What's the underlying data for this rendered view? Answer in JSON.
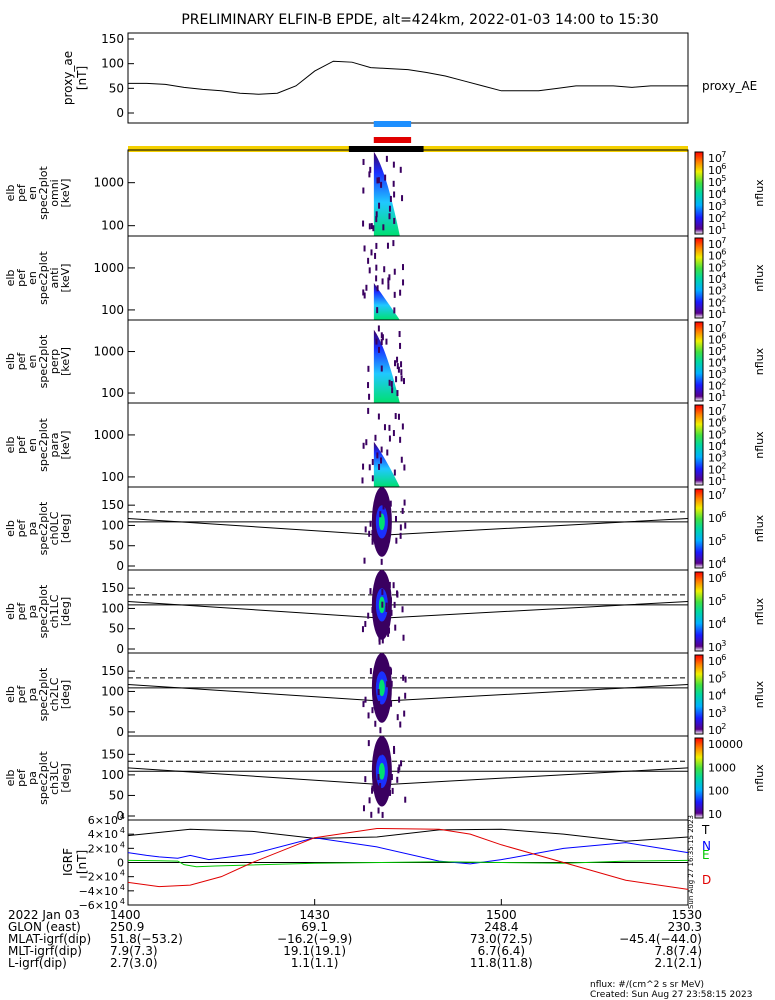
{
  "title": "PRELIMINARY ELFIN-B EPDE, alt=424km, 2022-01-03 14:00 to 15:30",
  "colors": {
    "sci_zone_bar": "#f4d000",
    "sci_zone_active": "#000000",
    "blue_marker": "#1e90ff",
    "red_marker": "#e00000",
    "T_trace": "#000000",
    "N_trace": "#0000ff",
    "E_trace": "#00c800",
    "D_trace": "#e00000"
  },
  "colorbar_label": "nflux",
  "colorbars": [
    {
      "ticks": [
        "10",
        "10",
        "10",
        "10",
        "10",
        "10",
        "10"
      ],
      "exps": [
        "7",
        "6",
        "5",
        "4",
        "3",
        "2",
        "1"
      ]
    },
    {
      "ticks": [
        "10",
        "10",
        "10",
        "10",
        "10",
        "10",
        "10"
      ],
      "exps": [
        "7",
        "6",
        "5",
        "4",
        "3",
        "2",
        "1"
      ]
    },
    {
      "ticks": [
        "10",
        "10",
        "10",
        "10",
        "10",
        "10",
        "10"
      ],
      "exps": [
        "7",
        "6",
        "5",
        "4",
        "3",
        "2",
        "1"
      ]
    },
    {
      "ticks": [
        "10",
        "10",
        "10",
        "10",
        "10",
        "10",
        "10"
      ],
      "exps": [
        "7",
        "6",
        "5",
        "4",
        "3",
        "2",
        "1"
      ]
    },
    {
      "ticks": [
        "10",
        "10",
        "10",
        "10"
      ],
      "exps": [
        "7",
        "6",
        "5",
        "4"
      ]
    },
    {
      "ticks": [
        "10",
        "10",
        "10",
        "10"
      ],
      "exps": [
        "6",
        "5",
        "4",
        "3"
      ]
    },
    {
      "ticks": [
        "10",
        "10",
        "10",
        "10",
        "10"
      ],
      "exps": [
        "6",
        "5",
        "4",
        "3",
        "2"
      ]
    },
    {
      "ticks": [
        "10000",
        "1000",
        "100",
        "10"
      ],
      "exps": [
        "",
        "",
        "",
        ""
      ]
    }
  ],
  "panel_labels": [
    [
      "proxy_ae",
      "[nT]"
    ],
    [
      "elb",
      "pef",
      "en",
      "spec2plot",
      "omni",
      "[keV]"
    ],
    [
      "elb",
      "pef",
      "en",
      "spec2plot",
      "anti",
      "[keV]"
    ],
    [
      "elb",
      "pef",
      "en",
      "spec2plot",
      "perp",
      "[keV]"
    ],
    [
      "elb",
      "pef",
      "en",
      "spec2plot",
      "para",
      "[keV]"
    ],
    [
      "elb",
      "pef",
      "pa",
      "spec2plot",
      "ch0LC",
      "[deg]"
    ],
    [
      "elb",
      "pef",
      "pa",
      "spec2plot",
      "ch1LC",
      "[deg]"
    ],
    [
      "elb",
      "pef",
      "pa",
      "spec2plot",
      "ch2LC",
      "[deg]"
    ],
    [
      "elb",
      "pef",
      "pa",
      "spec2plot",
      "ch3LC",
      "[deg]"
    ],
    [
      "IGRF",
      "[nT]"
    ]
  ],
  "energy_ticks": [
    "1000",
    "100"
  ],
  "pa_ticks": [
    "150",
    "100",
    "50",
    "0"
  ],
  "ae_ticks": [
    "150",
    "100",
    "50",
    "0"
  ],
  "igrf_ticks": [
    {
      "m": "6",
      "e": "4",
      "sign": ""
    },
    {
      "m": "4",
      "e": "4",
      "sign": ""
    },
    {
      "m": "2",
      "e": "4",
      "sign": ""
    },
    {
      "m": "0",
      "e": "",
      "sign": ""
    },
    {
      "m": "2",
      "e": "4",
      "sign": "−"
    },
    {
      "m": "4",
      "e": "4",
      "sign": "−"
    },
    {
      "m": "6",
      "e": "4",
      "sign": "−"
    }
  ],
  "igrf_legend": [
    "T",
    "N",
    "E",
    "D"
  ],
  "ae_series_label": "proxy_AE",
  "side_stamp": "Sun Aug 27 16:35:15 2023",
  "chart_data": [
    {
      "type": "line",
      "name": "proxy_ae",
      "ylabel": "proxy_ae [nT]",
      "ylim": [
        0,
        150
      ],
      "xlim_minutes": [
        0,
        90
      ],
      "series": [
        {
          "name": "proxy_AE",
          "x": [
            0,
            3,
            6,
            9,
            12,
            15,
            18,
            21,
            24,
            27,
            30,
            33,
            36,
            39,
            42,
            45,
            48,
            51,
            54,
            57,
            60,
            63,
            66,
            69,
            72,
            75,
            78,
            81,
            84,
            87,
            90
          ],
          "values": [
            60,
            60,
            58,
            52,
            48,
            45,
            40,
            38,
            40,
            55,
            85,
            105,
            103,
            92,
            90,
            88,
            82,
            75,
            65,
            55,
            45,
            45,
            45,
            50,
            55,
            55,
            55,
            52,
            55,
            55,
            55
          ]
        }
      ]
    },
    {
      "type": "line",
      "name": "IGRF",
      "ylabel": "IGRF [nT]",
      "ylim": [
        -60000,
        60000
      ],
      "xlim_minutes": [
        0,
        90
      ],
      "series": [
        {
          "name": "T",
          "x": [
            0,
            10,
            20,
            30,
            40,
            50,
            60,
            70,
            80,
            90
          ],
          "values": [
            38000,
            47000,
            44000,
            34000,
            36000,
            46000,
            47000,
            40000,
            30000,
            36000
          ]
        },
        {
          "name": "N",
          "x": [
            0,
            3,
            5,
            8,
            10,
            13,
            20,
            30,
            40,
            50,
            55,
            60,
            70,
            80,
            90
          ],
          "values": [
            14000,
            10000,
            8000,
            6000,
            10000,
            4000,
            12000,
            35000,
            22000,
            2000,
            -2000,
            4000,
            20000,
            28000,
            14000
          ]
        },
        {
          "name": "E",
          "x": [
            0,
            5,
            8,
            9,
            11,
            14,
            30,
            50,
            60,
            70,
            80,
            90
          ],
          "values": [
            3000,
            2500,
            2000,
            -3000,
            -6000,
            -5000,
            -1000,
            1000,
            0,
            -1000,
            2000,
            3000
          ]
        },
        {
          "name": "D",
          "x": [
            0,
            5,
            10,
            15,
            20,
            30,
            40,
            50,
            55,
            60,
            70,
            80,
            90
          ],
          "values": [
            -28000,
            -34000,
            -32000,
            -20000,
            0,
            35000,
            48000,
            47000,
            40000,
            25000,
            0,
            -25000,
            -38000
          ]
        }
      ]
    },
    {
      "type": "heatmap",
      "name": "energy and pitch-angle spectrograms",
      "x_active_minutes": [
        36,
        44
      ],
      "energy_ylim_keV": [
        60,
        6000
      ],
      "pa_ylim_deg": [
        0,
        180
      ],
      "panels": [
        "omni",
        "anti",
        "perp",
        "para",
        "ch0LC",
        "ch1LC",
        "ch2LC",
        "ch3LC"
      ]
    }
  ],
  "axis": {
    "ticks": [
      "1400",
      "1430",
      "1500",
      "1530"
    ],
    "rows": [
      {
        "label": "2022 Jan 03",
        "values": [
          "1400",
          "1430",
          "1500",
          "1530"
        ]
      },
      {
        "label": "GLON (east)",
        "values": [
          "250.9",
          "69.1",
          "248.4",
          "230.3"
        ]
      },
      {
        "label": "MLAT-igrf(dip)",
        "values": [
          "51.8(−53.2)",
          "−16.2(−9.9)",
          "73.0(72.5)",
          "−45.4(−44.0)"
        ]
      },
      {
        "label": "MLT-igrf(dip)",
        "values": [
          "7.9(7.3)",
          "19.1(19.1)",
          "6.7(6.4)",
          "7.8(7.4)"
        ]
      },
      {
        "label": "L-igrf(dip)",
        "values": [
          "2.7(3.0)",
          "1.1(1.1)",
          "11.8(11.8)",
          "2.1(2.1)"
        ]
      }
    ]
  },
  "footer": {
    "units": "nflux: #/(cm^2 s sr MeV)",
    "created": "Created: Sun Aug 27 23:58:15 2023"
  }
}
